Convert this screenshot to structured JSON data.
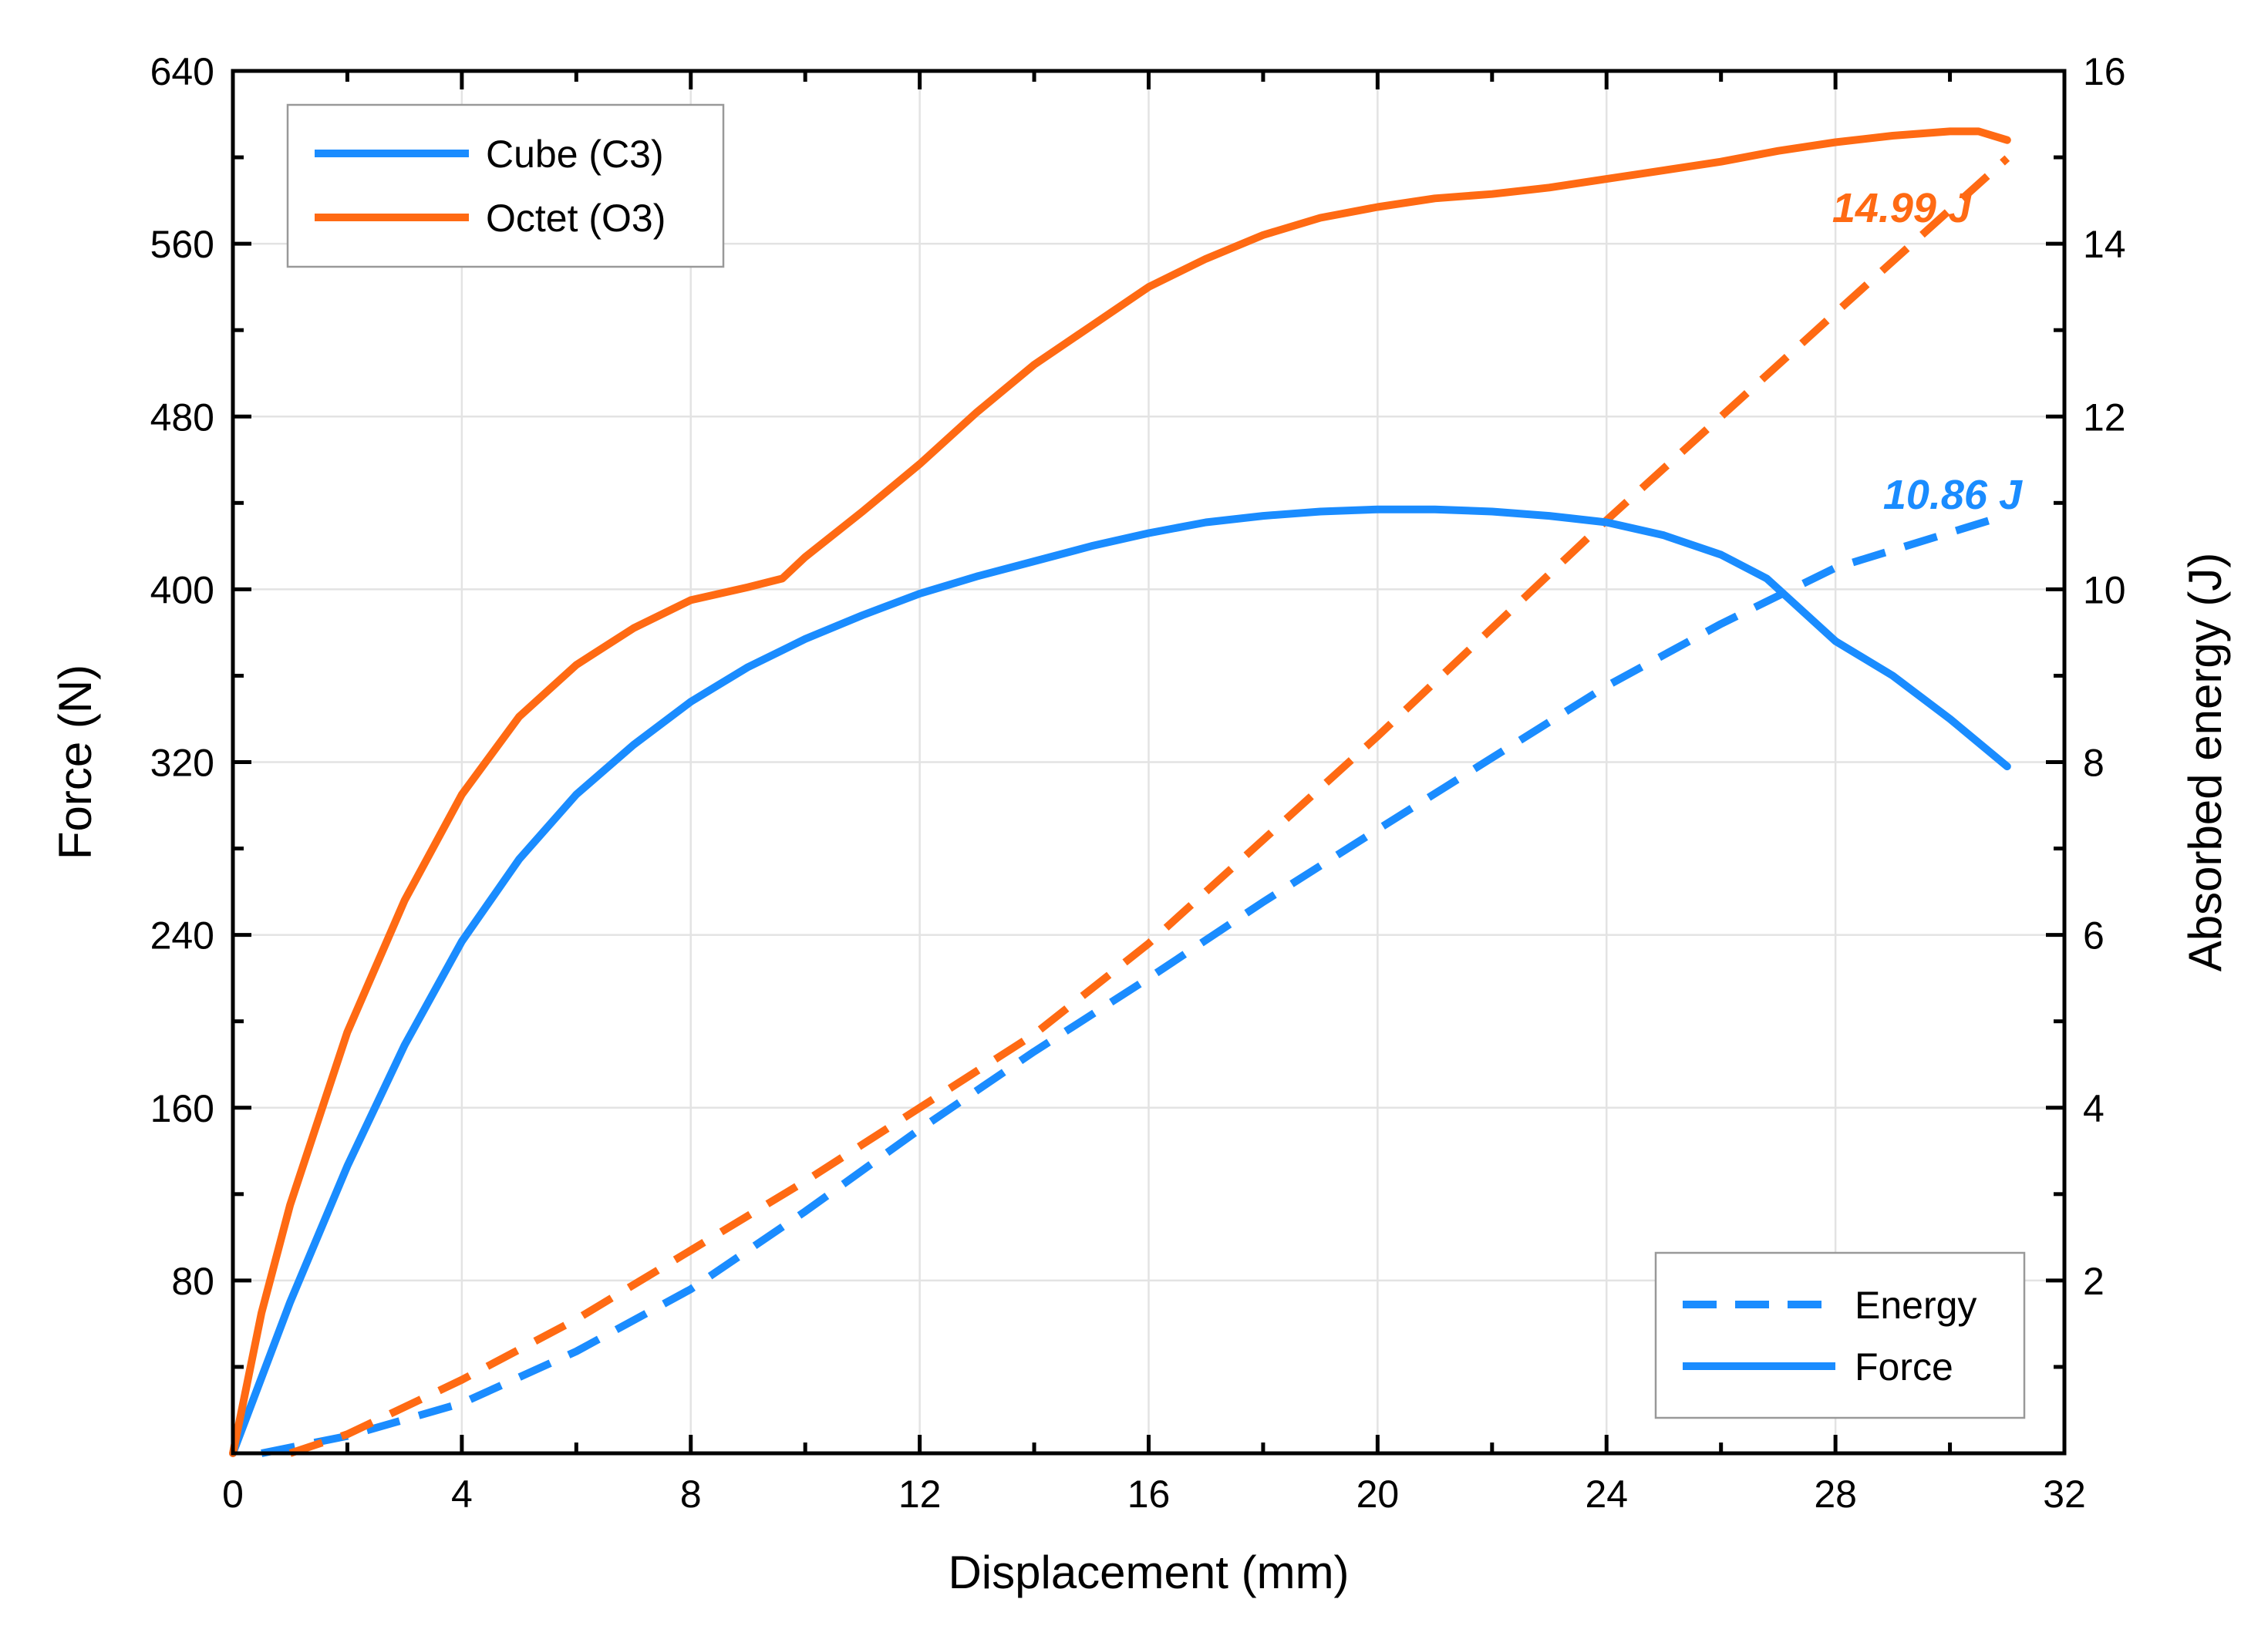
{
  "chart_data": {
    "type": "line",
    "title": "",
    "xlabel": "Displacement (mm)",
    "ylabel": "Force (N)",
    "y2label": "Absorbed energy (J)",
    "xlim": [
      0,
      32
    ],
    "ylim": [
      0,
      640
    ],
    "y2lim": [
      0,
      16
    ],
    "xticks": [
      "0",
      "4",
      "8",
      "12",
      "16",
      "20",
      "24",
      "28",
      "32"
    ],
    "yticks": [
      "80",
      "160",
      "240",
      "320",
      "400",
      "480",
      "560",
      "640"
    ],
    "y2ticks": [
      "2",
      "4",
      "6",
      "8",
      "10",
      "12",
      "14",
      "16"
    ],
    "grid": true,
    "legend_materials": {
      "placement": "top-left",
      "entries": [
        {
          "label": "Cube (C3)",
          "color": "#1a8cff"
        },
        {
          "label": "Octet (O3)",
          "color": "#ff6a13"
        }
      ]
    },
    "legend_styles": {
      "placement": "bottom-right",
      "entries": [
        {
          "label": "Energy",
          "style": "dashed"
        },
        {
          "label": "Force",
          "style": "solid"
        }
      ]
    },
    "annotations": [
      {
        "text": "14.99 J",
        "series": "Octet (O3)"
      },
      {
        "text": "10.86 J",
        "series": "Cube (C3)"
      }
    ],
    "series": [
      {
        "name": "Cube (C3) Force",
        "axis": "left",
        "style": "solid",
        "color": "#1a8cff",
        "x": [
          0,
          1,
          2,
          3,
          4,
          5,
          6,
          7,
          8,
          9,
          10,
          11,
          12,
          13,
          14,
          15,
          16,
          17,
          18,
          19,
          20,
          21,
          22,
          23,
          24,
          25,
          26,
          26.8,
          28,
          29,
          30,
          31
        ],
        "y": [
          0,
          70,
          133,
          189,
          237,
          275,
          305,
          328,
          348,
          364,
          377,
          388,
          398,
          406,
          413,
          420,
          426,
          431,
          434,
          436,
          437,
          437,
          436,
          434,
          431,
          425,
          416,
          405,
          376,
          360,
          340,
          318
        ]
      },
      {
        "name": "Octet (O3) Force",
        "axis": "left",
        "style": "solid",
        "color": "#ff6a13",
        "x": [
          0,
          0.5,
          1,
          2,
          3,
          4,
          5,
          6,
          7,
          8,
          9,
          9.6,
          10,
          11,
          12,
          13,
          14,
          15,
          16,
          17,
          18,
          19,
          20,
          21,
          22,
          23,
          24,
          25,
          26,
          27,
          28,
          29,
          30,
          30.5,
          31
        ],
        "y": [
          0,
          65,
          115,
          195,
          256,
          305,
          341,
          365,
          382,
          395,
          401,
          405,
          415,
          436,
          458,
          482,
          504,
          522,
          540,
          553,
          564,
          572,
          577,
          581,
          583,
          586,
          590,
          594,
          598,
          603,
          607,
          610,
          612,
          612,
          608
        ]
      },
      {
        "name": "Cube (C3) Energy",
        "axis": "right",
        "style": "dashed",
        "color": "#1a8cff",
        "x": [
          0.5,
          2,
          4,
          6,
          8,
          10,
          12,
          14,
          16,
          18,
          20,
          22,
          24,
          26,
          28,
          31
        ],
        "y": [
          0,
          0.2,
          0.58,
          1.18,
          1.9,
          2.8,
          3.75,
          4.65,
          5.5,
          6.38,
          7.22,
          8.05,
          8.88,
          9.6,
          10.25,
          10.86
        ]
      },
      {
        "name": "Octet (O3) Energy",
        "axis": "right",
        "style": "dashed",
        "color": "#ff6a13",
        "x": [
          1,
          2,
          4,
          6,
          8,
          10,
          12,
          14,
          16,
          18,
          20,
          22,
          24,
          26,
          28,
          31
        ],
        "y": [
          0,
          0.22,
          0.85,
          1.55,
          2.35,
          3.15,
          4.0,
          4.85,
          5.9,
          7.1,
          8.3,
          9.55,
          10.8,
          12.0,
          13.2,
          14.99
        ]
      }
    ]
  }
}
